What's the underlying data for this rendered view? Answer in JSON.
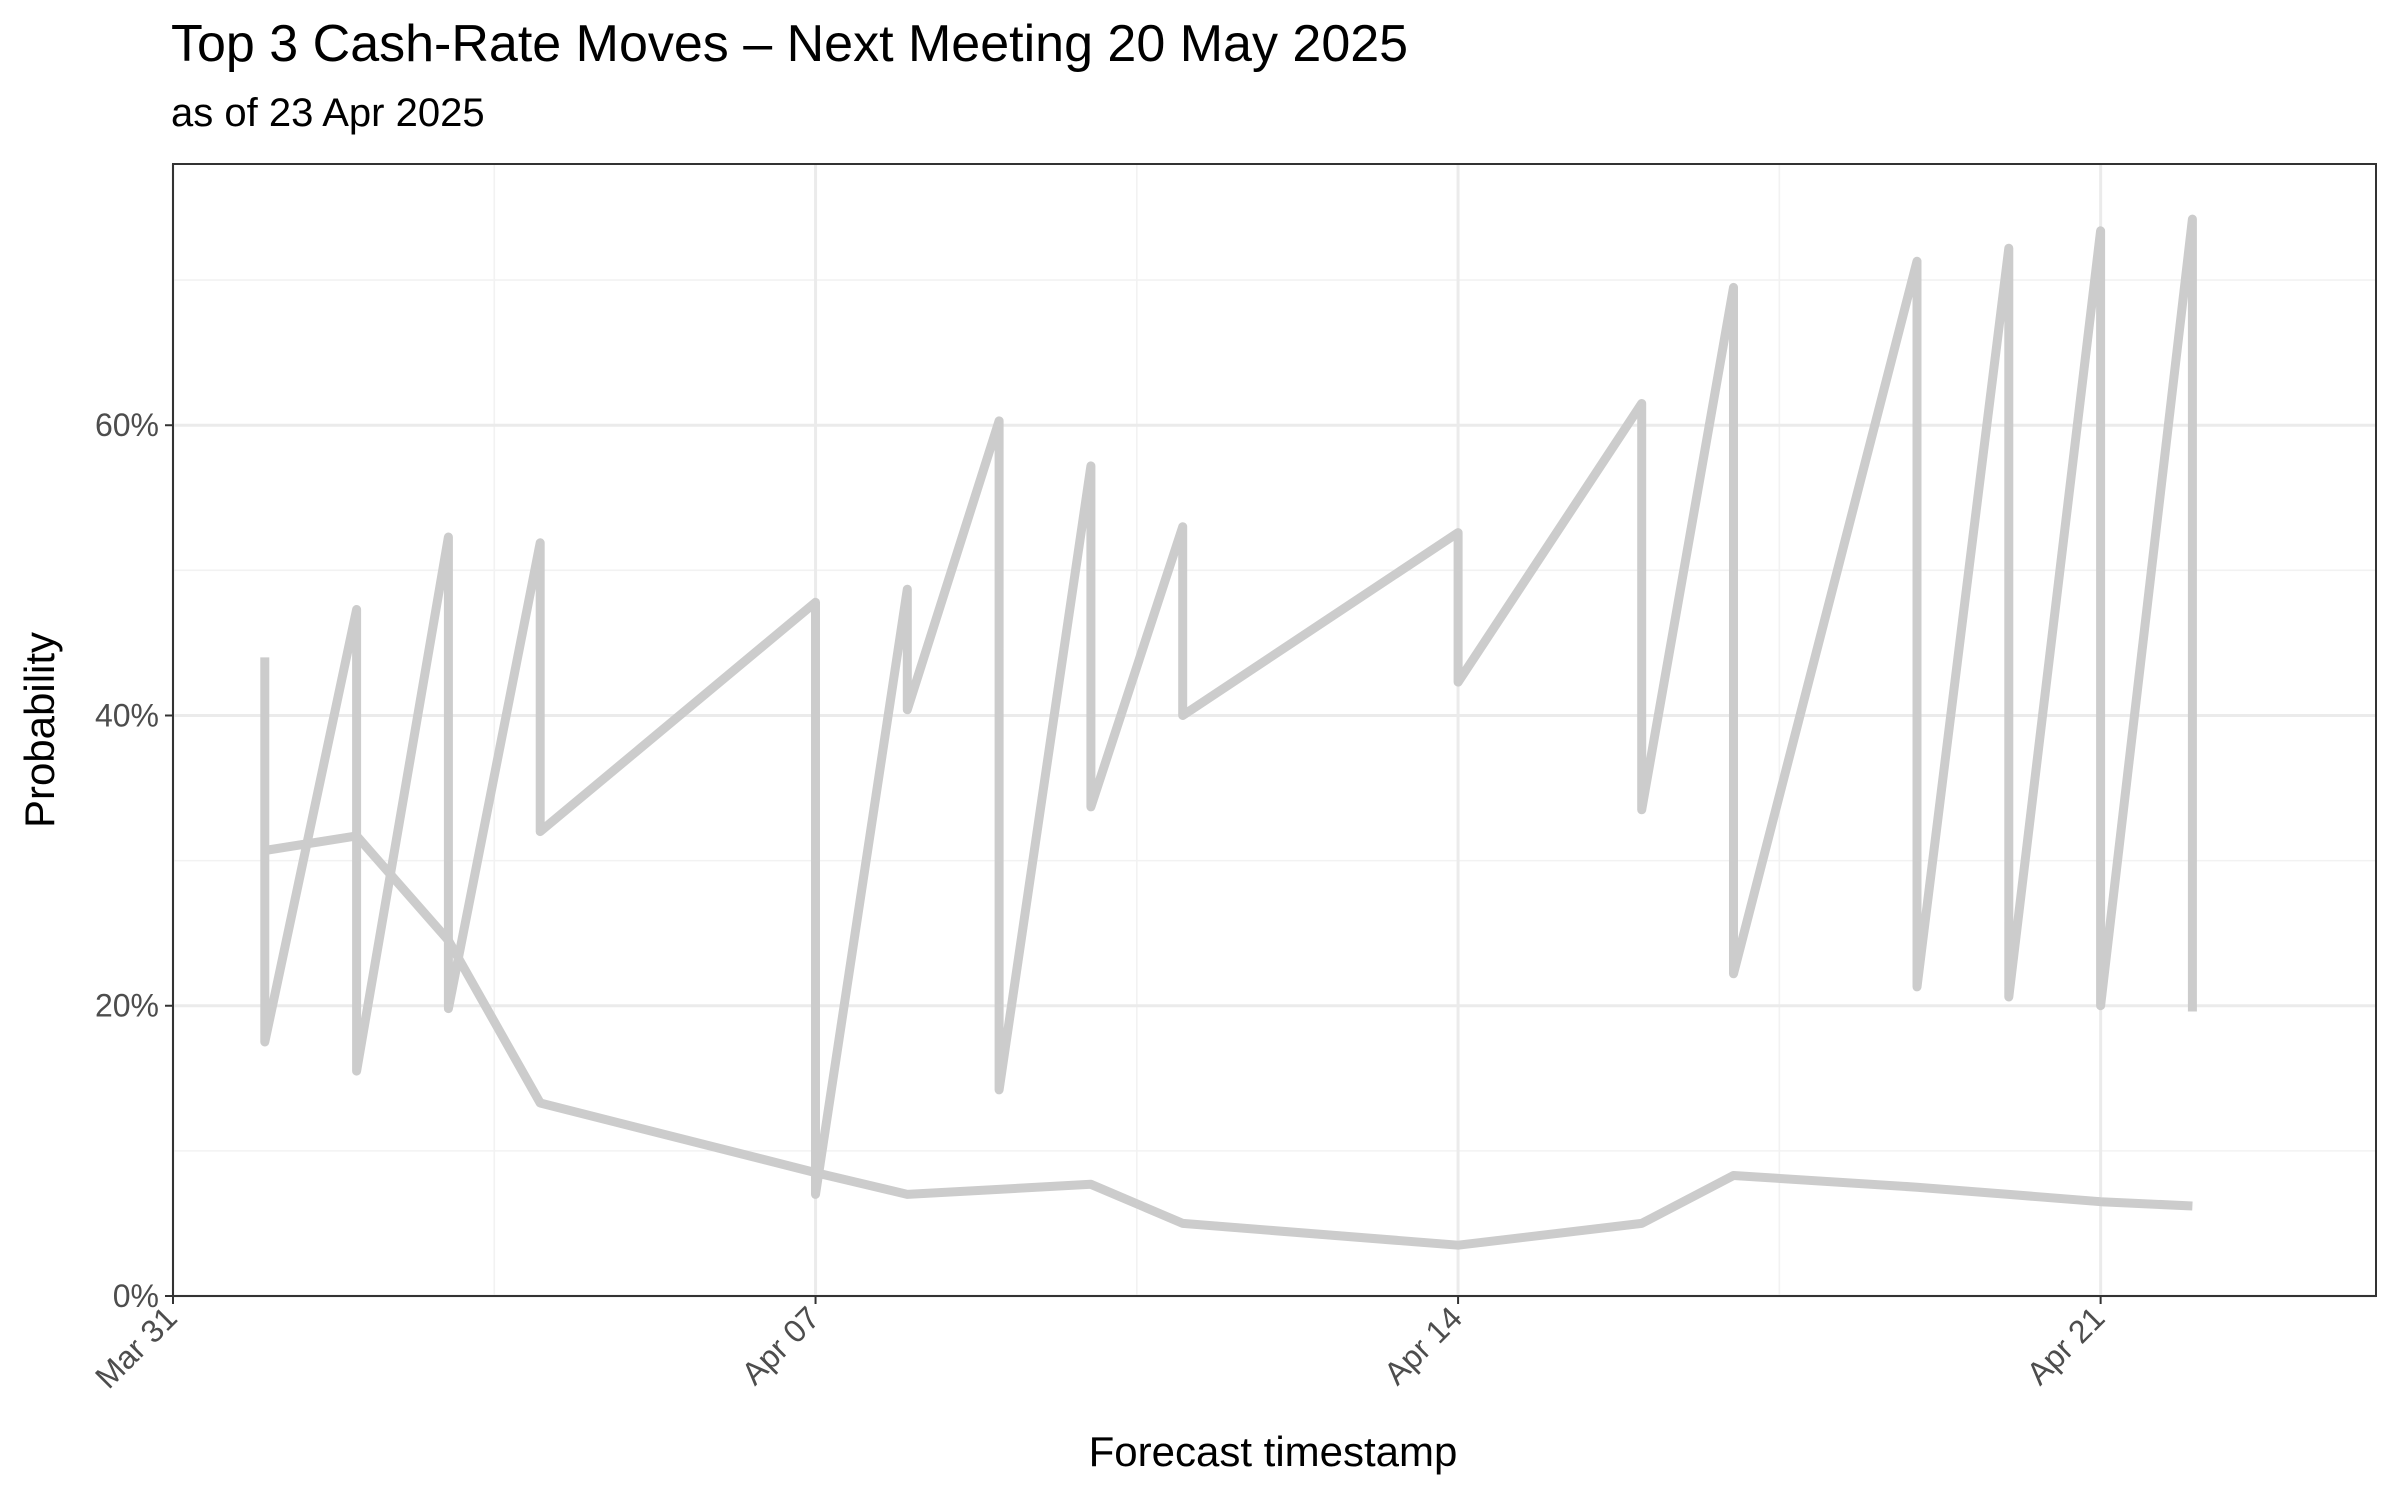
{
  "chart_data": {
    "type": "line",
    "title": "Top 3 Cash-Rate Moves – Next Meeting 20 May 2025",
    "subtitle": "as of 23 Apr 2025",
    "xlabel": "Forecast timestamp",
    "ylabel": "Probability",
    "x_scale": "date",
    "xlim": [
      "2025-03-31",
      "2025-04-24"
    ],
    "ylim": [
      0,
      0.78
    ],
    "x_ticks": [
      {
        "date": "2025-03-31",
        "label": "Mar 31"
      },
      {
        "date": "2025-04-07",
        "label": "Apr 07"
      },
      {
        "date": "2025-04-14",
        "label": "Apr 14"
      },
      {
        "date": "2025-04-21",
        "label": "Apr 21"
      }
    ],
    "y_ticks": [
      {
        "value": 0,
        "label": "0%"
      },
      {
        "value": 0.2,
        "label": "20%"
      },
      {
        "value": 0.4,
        "label": "40%"
      },
      {
        "value": 0.6,
        "label": "60%"
      }
    ],
    "grid": true,
    "legend": "none",
    "line_color": "#cccccc",
    "series": [
      {
        "points": [
          {
            "x": "2025-04-01",
            "y": 0.44
          },
          {
            "x": "2025-04-01",
            "y": 0.175
          },
          {
            "x": "2025-04-02",
            "y": 0.473
          },
          {
            "x": "2025-04-02",
            "y": 0.155
          },
          {
            "x": "2025-04-03",
            "y": 0.523
          },
          {
            "x": "2025-04-03",
            "y": 0.198
          },
          {
            "x": "2025-04-04",
            "y": 0.519
          },
          {
            "x": "2025-04-04",
            "y": 0.32
          },
          {
            "x": "2025-04-07",
            "y": 0.478
          },
          {
            "x": "2025-04-07",
            "y": 0.07
          },
          {
            "x": "2025-04-08",
            "y": 0.487
          },
          {
            "x": "2025-04-08",
            "y": 0.404
          },
          {
            "x": "2025-04-09",
            "y": 0.603
          },
          {
            "x": "2025-04-09",
            "y": 0.142
          },
          {
            "x": "2025-04-10",
            "y": 0.572
          },
          {
            "x": "2025-04-10",
            "y": 0.337
          },
          {
            "x": "2025-04-11",
            "y": 0.53
          },
          {
            "x": "2025-04-11",
            "y": 0.4
          },
          {
            "x": "2025-04-14",
            "y": 0.526
          },
          {
            "x": "2025-04-14",
            "y": 0.423
          },
          {
            "x": "2025-04-16",
            "y": 0.615
          },
          {
            "x": "2025-04-16",
            "y": 0.335
          },
          {
            "x": "2025-04-17",
            "y": 0.695
          },
          {
            "x": "2025-04-17",
            "y": 0.222
          },
          {
            "x": "2025-04-19",
            "y": 0.713
          },
          {
            "x": "2025-04-19",
            "y": 0.213
          },
          {
            "x": "2025-04-20",
            "y": 0.722
          },
          {
            "x": "2025-04-20",
            "y": 0.206
          },
          {
            "x": "2025-04-21",
            "y": 0.734
          },
          {
            "x": "2025-04-21",
            "y": 0.2
          },
          {
            "x": "2025-04-22",
            "y": 0.742
          },
          {
            "x": "2025-04-22",
            "y": 0.196
          }
        ]
      },
      {
        "points": [
          {
            "x": "2025-04-01",
            "y": 0.307
          },
          {
            "x": "2025-04-02",
            "y": 0.317
          },
          {
            "x": "2025-04-03",
            "y": 0.245
          },
          {
            "x": "2025-04-04",
            "y": 0.133
          },
          {
            "x": "2025-04-07",
            "y": 0.085
          },
          {
            "x": "2025-04-08",
            "y": 0.07
          },
          {
            "x": "2025-04-10",
            "y": 0.077
          },
          {
            "x": "2025-04-11",
            "y": 0.05
          },
          {
            "x": "2025-04-14",
            "y": 0.035
          },
          {
            "x": "2025-04-16",
            "y": 0.05
          },
          {
            "x": "2025-04-17",
            "y": 0.083
          },
          {
            "x": "2025-04-19",
            "y": 0.075
          },
          {
            "x": "2025-04-20",
            "y": 0.07
          },
          {
            "x": "2025-04-21",
            "y": 0.065
          },
          {
            "x": "2025-04-22",
            "y": 0.062
          }
        ]
      }
    ]
  }
}
